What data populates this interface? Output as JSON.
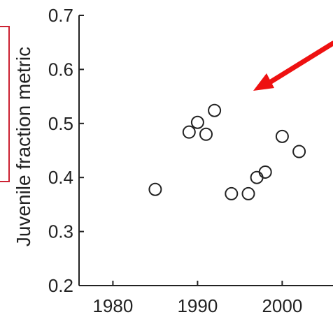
{
  "chart_data": {
    "type": "scatter",
    "ylabel": "Juvenile fraction metric",
    "xlim": [
      1976,
      2006
    ],
    "ylim": [
      0.2,
      0.7
    ],
    "xticks": [
      1980,
      1990,
      2000
    ],
    "xtick_labels": [
      "1980",
      "1990",
      "2000"
    ],
    "yticks": [
      0.2,
      0.3,
      0.4,
      0.5,
      0.6,
      0.7
    ],
    "ytick_labels": [
      "0.2",
      "0.3",
      "0.4",
      "0.5",
      "0.6",
      "0.7"
    ],
    "grid": false,
    "marker": "open-circle",
    "points": [
      {
        "x": 1985,
        "y": 0.378
      },
      {
        "x": 1989,
        "y": 0.484
      },
      {
        "x": 1990,
        "y": 0.502
      },
      {
        "x": 1991,
        "y": 0.48
      },
      {
        "x": 1992,
        "y": 0.524
      },
      {
        "x": 1994,
        "y": 0.37
      },
      {
        "x": 1996,
        "y": 0.37
      },
      {
        "x": 1997,
        "y": 0.4
      },
      {
        "x": 1998,
        "y": 0.41
      },
      {
        "x": 2000,
        "y": 0.476
      },
      {
        "x": 2002,
        "y": 0.448
      }
    ],
    "colors": {
      "marker": "#222222",
      "axis": "#222222",
      "annotation_arrow": "#ee1111",
      "annotation_box": "#cc2233"
    }
  }
}
